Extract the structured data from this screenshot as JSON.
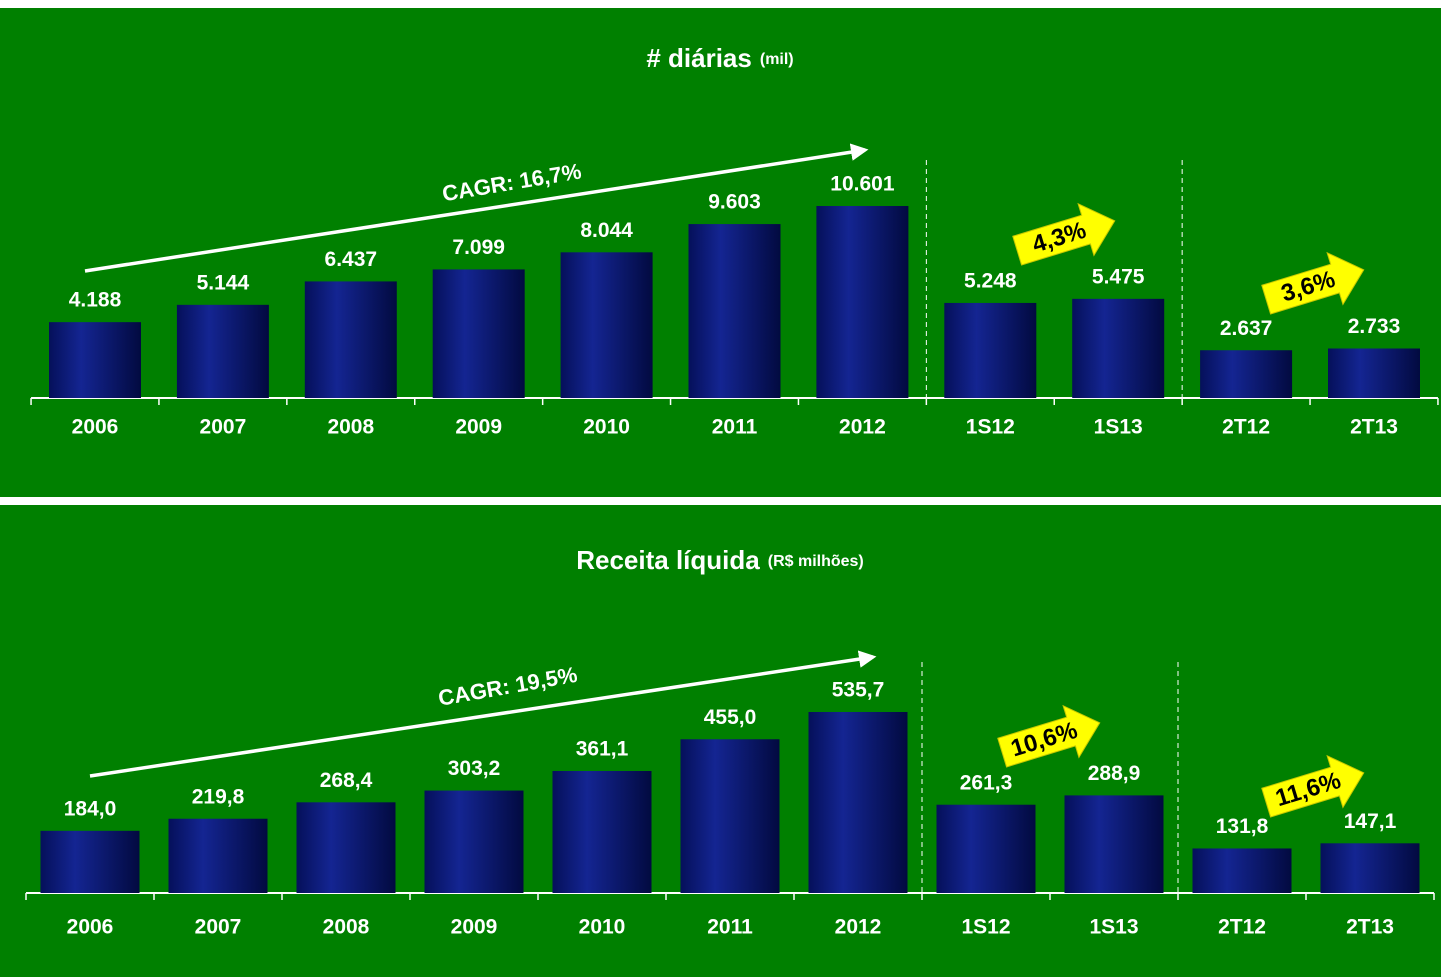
{
  "chart_data": [
    {
      "type": "bar",
      "title": "# diárias",
      "subtitle": "(mil)",
      "categories": [
        "2006",
        "2007",
        "2008",
        "2009",
        "2010",
        "2011",
        "2012",
        "1S12",
        "1S13",
        "2T12",
        "2T13"
      ],
      "values": [
        4188,
        5144,
        6437,
        7099,
        8044,
        9603,
        10601,
        5248,
        5475,
        2637,
        2733
      ],
      "value_labels": [
        "4.188",
        "5.144",
        "6.437",
        "7.099",
        "8.044",
        "9.603",
        "10.601",
        "5.248",
        "5.475",
        "2.637",
        "2.733"
      ],
      "color": "#0d1a80",
      "annotations": [
        "CAGR: 16,7%",
        "4,3%",
        "3,6%"
      ]
    },
    {
      "type": "bar",
      "title": "Receita líquida",
      "subtitle": "(R$ milhões)",
      "categories": [
        "2006",
        "2007",
        "2008",
        "2009",
        "2010",
        "2011",
        "2012",
        "1S12",
        "1S13",
        "2T12",
        "2T13"
      ],
      "values": [
        184.0,
        219.8,
        268.4,
        303.2,
        361.1,
        455.0,
        535.7,
        261.3,
        288.9,
        131.8,
        147.1
      ],
      "value_labels": [
        "184,0",
        "219,8",
        "268,4",
        "303,2",
        "361,1",
        "455,0",
        "535,7",
        "261,3",
        "288,9",
        "131,8",
        "147,1"
      ],
      "color": "#0d1a80",
      "annotations": [
        "CAGR: 19,5%",
        "10,6%",
        "11,6%"
      ]
    }
  ]
}
